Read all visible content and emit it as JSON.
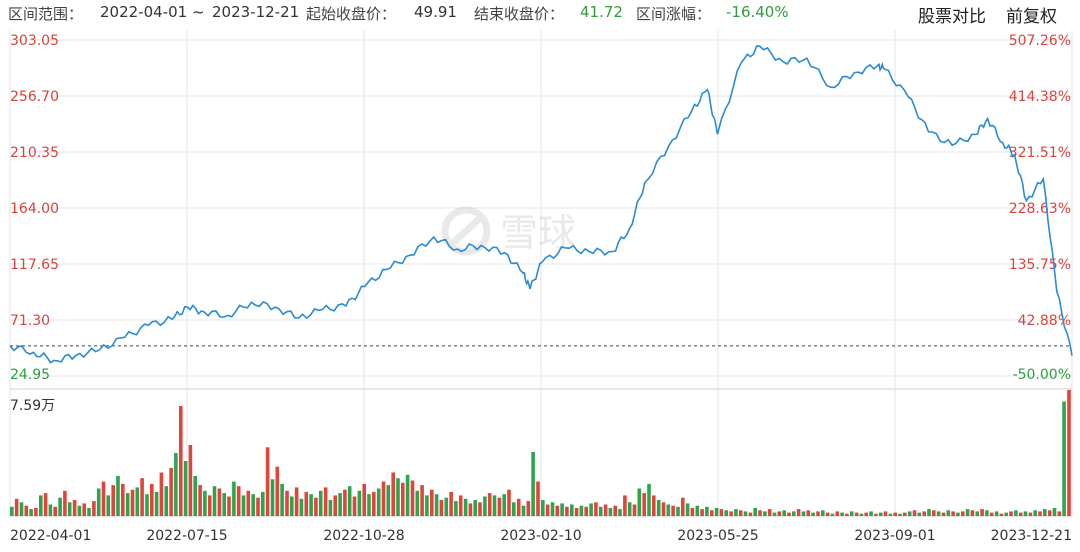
{
  "header": {
    "range_label": "区间范围：",
    "range_start": "2022-04-01",
    "range_sep": "~",
    "range_end": "2023-12-21",
    "start_close_label": "起始收盘价：",
    "start_close_value": "49.91",
    "end_close_label": "结束收盘价：",
    "end_close_value": "41.72",
    "change_label": "区间涨幅：",
    "change_value": "-16.40%",
    "compare_button": "股票对比",
    "adjust_button": "前复权"
  },
  "watermark": "雪球",
  "colors": {
    "line": "#2a8bd1",
    "up": "#e0453c",
    "down": "#2ea44f",
    "neg_text": "#2e9e3e",
    "pos_text": "#d6453d",
    "grid": "#e6e6e6"
  },
  "chart_data": {
    "type": "line",
    "price_axis": {
      "ticks": [
        "303.05",
        "256.70",
        "210.35",
        "164.00",
        "117.65",
        "71.30",
        "24.95"
      ],
      "ylim": [
        24.95,
        303.05
      ]
    },
    "pct_axis": {
      "ticks": [
        "507.26%",
        "414.38%",
        "321.51%",
        "228.63%",
        "135.75%",
        "42.88%",
        "-50.00%"
      ]
    },
    "baseline": 49.91,
    "volume_axis_label": "7.59万",
    "volume_max": 75900,
    "x_ticks": [
      "2022-04-01",
      "2022-07-15",
      "2022-10-28",
      "2023-02-10",
      "2023-05-25",
      "2023-09-01",
      "2023-12-21"
    ],
    "series": [
      {
        "points": [
          [
            "2022-04-01",
            49.9
          ],
          [
            "2022-04-15",
            44.5
          ],
          [
            "2022-04-27",
            37.8
          ],
          [
            "2022-05-10",
            42.0
          ],
          [
            "2022-05-24",
            46.5
          ],
          [
            "2022-06-08",
            57.0
          ],
          [
            "2022-06-22",
            67.0
          ],
          [
            "2022-07-06",
            72.0
          ],
          [
            "2022-07-15",
            82.0
          ],
          [
            "2022-07-25",
            78.0
          ],
          [
            "2022-08-08",
            75.0
          ],
          [
            "2022-08-22",
            86.0
          ],
          [
            "2022-09-05",
            82.0
          ],
          [
            "2022-09-19",
            73.0
          ],
          [
            "2022-10-03",
            80.0
          ],
          [
            "2022-10-17",
            83.0
          ],
          [
            "2022-10-28",
            99.0
          ],
          [
            "2022-11-10",
            113.0
          ],
          [
            "2022-11-24",
            125.0
          ],
          [
            "2022-12-08",
            140.0
          ],
          [
            "2022-12-22",
            130.0
          ],
          [
            "2023-01-05",
            133.0
          ],
          [
            "2023-01-19",
            127.0
          ],
          [
            "2023-01-30",
            110.0
          ],
          [
            "2023-02-03",
            97.0
          ],
          [
            "2023-02-10",
            119.0
          ],
          [
            "2023-02-24",
            131.0
          ],
          [
            "2023-03-10",
            128.0
          ],
          [
            "2023-03-24",
            128.0
          ],
          [
            "2023-04-03",
            147.0
          ],
          [
            "2023-04-12",
            185.0
          ],
          [
            "2023-04-26",
            215.0
          ],
          [
            "2023-05-10",
            245.0
          ],
          [
            "2023-05-19",
            262.0
          ],
          [
            "2023-05-25",
            225.0
          ],
          [
            "2023-06-08",
            284.0
          ],
          [
            "2023-06-19",
            298.0
          ],
          [
            "2023-07-03",
            285.0
          ],
          [
            "2023-07-17",
            288.0
          ],
          [
            "2023-07-31",
            264.0
          ],
          [
            "2023-08-14",
            276.0
          ],
          [
            "2023-08-28",
            282.0
          ],
          [
            "2023-09-01",
            279.0
          ],
          [
            "2023-09-15",
            256.0
          ],
          [
            "2023-09-27",
            227.0
          ],
          [
            "2023-10-11",
            216.0
          ],
          [
            "2023-10-25",
            225.0
          ],
          [
            "2023-11-01",
            238.0
          ],
          [
            "2023-11-10",
            218.0
          ],
          [
            "2023-11-17",
            208.0
          ],
          [
            "2023-11-24",
            170.0
          ],
          [
            "2023-12-04",
            188.0
          ],
          [
            "2023-12-12",
            95.0
          ],
          [
            "2023-12-21",
            41.72
          ]
        ]
      }
    ],
    "volume_bars": [
      [
        "d",
        8
      ],
      [
        "u",
        15
      ],
      [
        "d",
        12
      ],
      [
        "u",
        9
      ],
      [
        "d",
        6
      ],
      [
        "u",
        7
      ],
      [
        "d",
        18
      ],
      [
        "u",
        20
      ],
      [
        "d",
        10
      ],
      [
        "u",
        8
      ],
      [
        "d",
        16
      ],
      [
        "u",
        22
      ],
      [
        "d",
        12
      ],
      [
        "u",
        14
      ],
      [
        "d",
        9
      ],
      [
        "u",
        11
      ],
      [
        "d",
        7
      ],
      [
        "u",
        13
      ],
      [
        "d",
        24
      ],
      [
        "u",
        30
      ],
      [
        "d",
        18
      ],
      [
        "u",
        27
      ],
      [
        "d",
        35
      ],
      [
        "u",
        28
      ],
      [
        "d",
        20
      ],
      [
        "u",
        23
      ],
      [
        "d",
        25
      ],
      [
        "u",
        33
      ],
      [
        "d",
        19
      ],
      [
        "u",
        28
      ],
      [
        "d",
        21
      ],
      [
        "u",
        38
      ],
      [
        "d",
        26
      ],
      [
        "u",
        42
      ],
      [
        "d",
        55
      ],
      [
        "u",
        96
      ],
      [
        "d",
        48
      ],
      [
        "u",
        62
      ],
      [
        "d",
        35
      ],
      [
        "u",
        27
      ],
      [
        "d",
        22
      ],
      [
        "u",
        18
      ],
      [
        "d",
        26
      ],
      [
        "u",
        24
      ],
      [
        "d",
        20
      ],
      [
        "u",
        17
      ],
      [
        "d",
        30
      ],
      [
        "u",
        26
      ],
      [
        "d",
        18
      ],
      [
        "u",
        22
      ],
      [
        "d",
        19
      ],
      [
        "u",
        16
      ],
      [
        "d",
        21
      ],
      [
        "u",
        60
      ],
      [
        "d",
        32
      ],
      [
        "u",
        43
      ],
      [
        "d",
        28
      ],
      [
        "u",
        22
      ],
      [
        "d",
        17
      ],
      [
        "u",
        25
      ],
      [
        "d",
        15
      ],
      [
        "u",
        21
      ],
      [
        "d",
        19
      ],
      [
        "u",
        16
      ],
      [
        "d",
        22
      ],
      [
        "u",
        25
      ],
      [
        "d",
        14
      ],
      [
        "u",
        18
      ],
      [
        "d",
        20
      ],
      [
        "u",
        23
      ],
      [
        "d",
        26
      ],
      [
        "u",
        17
      ],
      [
        "d",
        22
      ],
      [
        "u",
        28
      ],
      [
        "d",
        19
      ],
      [
        "u",
        21
      ],
      [
        "d",
        24
      ],
      [
        "u",
        30
      ],
      [
        "d",
        27
      ],
      [
        "u",
        38
      ],
      [
        "d",
        33
      ],
      [
        "u",
        29
      ],
      [
        "d",
        36
      ],
      [
        "u",
        31
      ],
      [
        "d",
        22
      ],
      [
        "u",
        27
      ],
      [
        "d",
        18
      ],
      [
        "u",
        23
      ],
      [
        "d",
        19
      ],
      [
        "u",
        14
      ],
      [
        "d",
        16
      ],
      [
        "u",
        21
      ],
      [
        "d",
        13
      ],
      [
        "u",
        18
      ],
      [
        "d",
        15
      ],
      [
        "u",
        11
      ],
      [
        "d",
        14
      ],
      [
        "u",
        12
      ],
      [
        "d",
        17
      ],
      [
        "u",
        20
      ],
      [
        "d",
        18
      ],
      [
        "u",
        16
      ],
      [
        "d",
        19
      ],
      [
        "u",
        23
      ],
      [
        "d",
        12
      ],
      [
        "u",
        15
      ],
      [
        "d",
        9
      ],
      [
        "u",
        13
      ],
      [
        "d",
        56
      ],
      [
        "u",
        30
      ],
      [
        "d",
        14
      ],
      [
        "u",
        10
      ],
      [
        "d",
        12
      ],
      [
        "u",
        9
      ],
      [
        "d",
        11
      ],
      [
        "u",
        8
      ],
      [
        "d",
        10
      ],
      [
        "u",
        7
      ],
      [
        "d",
        9
      ],
      [
        "u",
        8
      ],
      [
        "d",
        11
      ],
      [
        "u",
        12
      ],
      [
        "d",
        8
      ],
      [
        "u",
        10
      ],
      [
        "d",
        7
      ],
      [
        "u",
        9
      ],
      [
        "d",
        6
      ],
      [
        "u",
        18
      ],
      [
        "d",
        12
      ],
      [
        "u",
        10
      ],
      [
        "d",
        24
      ],
      [
        "u",
        20
      ],
      [
        "d",
        28
      ],
      [
        "u",
        18
      ],
      [
        "d",
        14
      ],
      [
        "u",
        12
      ],
      [
        "d",
        10
      ],
      [
        "u",
        9
      ],
      [
        "d",
        8
      ],
      [
        "u",
        16
      ],
      [
        "d",
        11
      ],
      [
        "u",
        7
      ],
      [
        "d",
        9
      ],
      [
        "u",
        6
      ],
      [
        "d",
        8
      ],
      [
        "u",
        5
      ],
      [
        "d",
        7
      ],
      [
        "u",
        6
      ],
      [
        "d",
        5
      ],
      [
        "u",
        4
      ],
      [
        "d",
        6
      ],
      [
        "u",
        5
      ],
      [
        "d",
        4
      ],
      [
        "u",
        3
      ],
      [
        "d",
        7
      ],
      [
        "u",
        5
      ],
      [
        "d",
        4
      ],
      [
        "u",
        6
      ],
      [
        "d",
        3
      ],
      [
        "u",
        4
      ],
      [
        "d",
        5
      ],
      [
        "u",
        3
      ],
      [
        "d",
        4
      ],
      [
        "u",
        6
      ],
      [
        "d",
        4
      ],
      [
        "u",
        5
      ],
      [
        "d",
        3
      ],
      [
        "u",
        4
      ],
      [
        "d",
        5
      ],
      [
        "u",
        3
      ],
      [
        "d",
        2
      ],
      [
        "u",
        4
      ],
      [
        "d",
        3
      ],
      [
        "u",
        2
      ],
      [
        "d",
        4
      ],
      [
        "u",
        3
      ],
      [
        "d",
        2
      ],
      [
        "u",
        3
      ],
      [
        "d",
        4
      ],
      [
        "u",
        2
      ],
      [
        "d",
        3
      ],
      [
        "u",
        4
      ],
      [
        "d",
        2
      ],
      [
        "u",
        3
      ],
      [
        "d",
        2
      ],
      [
        "u",
        3
      ],
      [
        "d",
        4
      ],
      [
        "u",
        5
      ],
      [
        "d",
        3
      ],
      [
        "u",
        4
      ],
      [
        "d",
        6
      ],
      [
        "u",
        5
      ],
      [
        "d",
        4
      ],
      [
        "u",
        3
      ],
      [
        "d",
        5
      ],
      [
        "u",
        4
      ],
      [
        "d",
        3
      ],
      [
        "u",
        4
      ],
      [
        "d",
        6
      ],
      [
        "u",
        5
      ],
      [
        "d",
        4
      ],
      [
        "u",
        6
      ],
      [
        "d",
        5
      ],
      [
        "u",
        3
      ],
      [
        "d",
        4
      ],
      [
        "u",
        2
      ],
      [
        "d",
        3
      ],
      [
        "u",
        4
      ],
      [
        "d",
        5
      ],
      [
        "u",
        3
      ],
      [
        "d",
        4
      ],
      [
        "u",
        3
      ],
      [
        "d",
        5
      ],
      [
        "u",
        4
      ],
      [
        "d",
        6
      ],
      [
        "u",
        5
      ],
      [
        "d",
        7
      ],
      [
        "u",
        4
      ],
      [
        "d",
        100
      ],
      [
        "u",
        110
      ]
    ]
  }
}
